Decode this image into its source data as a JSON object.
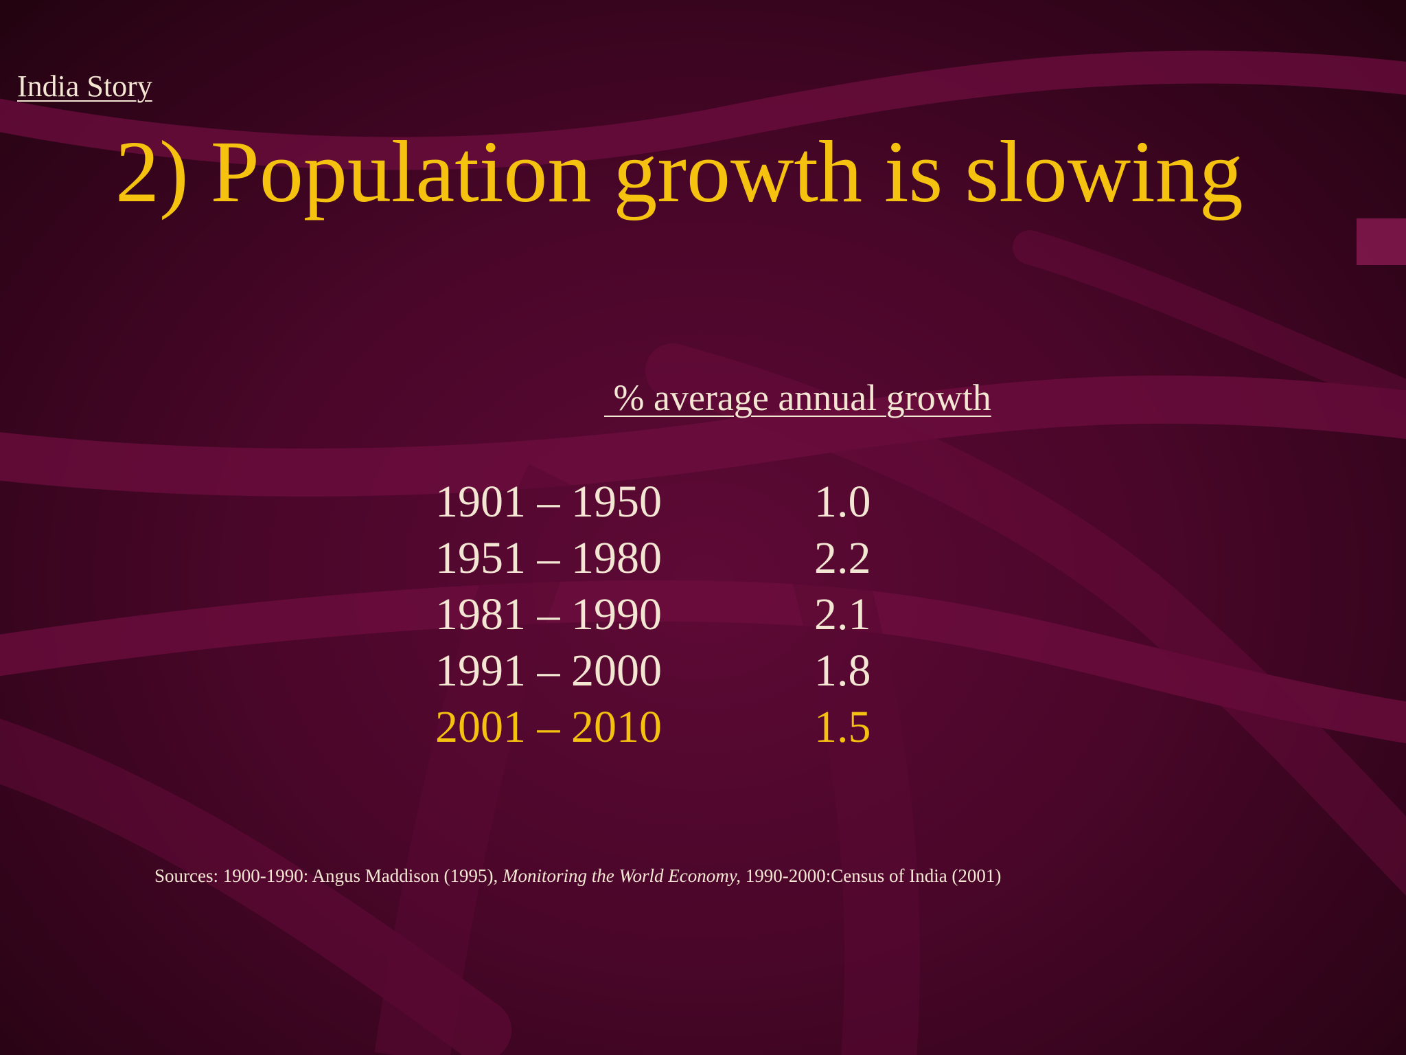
{
  "slide": {
    "kicker": "India Story",
    "title": "2) Population growth is slowing",
    "column_header": " % average annual growth",
    "rows": [
      {
        "period": "1901 – 1950",
        "value": "1.0"
      },
      {
        "period": "1951 – 1980",
        "value": "2.2"
      },
      {
        "period": "1981 – 1990",
        "value": "2.1"
      },
      {
        "period": "1991 – 2000",
        "value": "1.8"
      },
      {
        "period": "2001 – 2010",
        "value": "1.5"
      }
    ],
    "sources": {
      "prefix": "Sources: 1900-1990: Angus Maddison (1995), ",
      "italic": "Monitoring the World Economy,",
      "suffix": " 1990-2000:Census of India (2001)"
    }
  },
  "colors": {
    "accent": "#f5c210",
    "text": "#f3e7d3",
    "background": "#4a0629",
    "ribbon": "#6e0e3f"
  }
}
